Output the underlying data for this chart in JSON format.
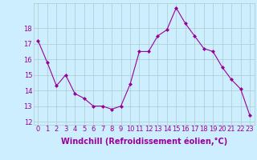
{
  "hours": [
    0,
    1,
    2,
    3,
    4,
    5,
    6,
    7,
    8,
    9,
    10,
    11,
    12,
    13,
    14,
    15,
    16,
    17,
    18,
    19,
    20,
    21,
    22,
    23
  ],
  "windchill": [
    17.2,
    15.8,
    14.3,
    15.0,
    13.8,
    13.5,
    13.0,
    13.0,
    12.8,
    13.0,
    14.4,
    16.5,
    16.5,
    17.5,
    17.9,
    19.3,
    18.3,
    17.5,
    16.7,
    16.5,
    15.5,
    14.7,
    14.1,
    12.4
  ],
  "line_color": "#990099",
  "marker": "D",
  "marker_size": 2,
  "bg_color": "#cceeff",
  "grid_color": "#aacccc",
  "xlabel": "Windchill (Refroidissement éolien,°C)",
  "ylim": [
    11.8,
    19.6
  ],
  "yticks": [
    12,
    13,
    14,
    15,
    16,
    17,
    18
  ],
  "xticks": [
    0,
    1,
    2,
    3,
    4,
    5,
    6,
    7,
    8,
    9,
    10,
    11,
    12,
    13,
    14,
    15,
    16,
    17,
    18,
    19,
    20,
    21,
    22,
    23
  ],
  "tick_fontsize": 6,
  "xlabel_fontsize": 7,
  "label_color": "#990099"
}
